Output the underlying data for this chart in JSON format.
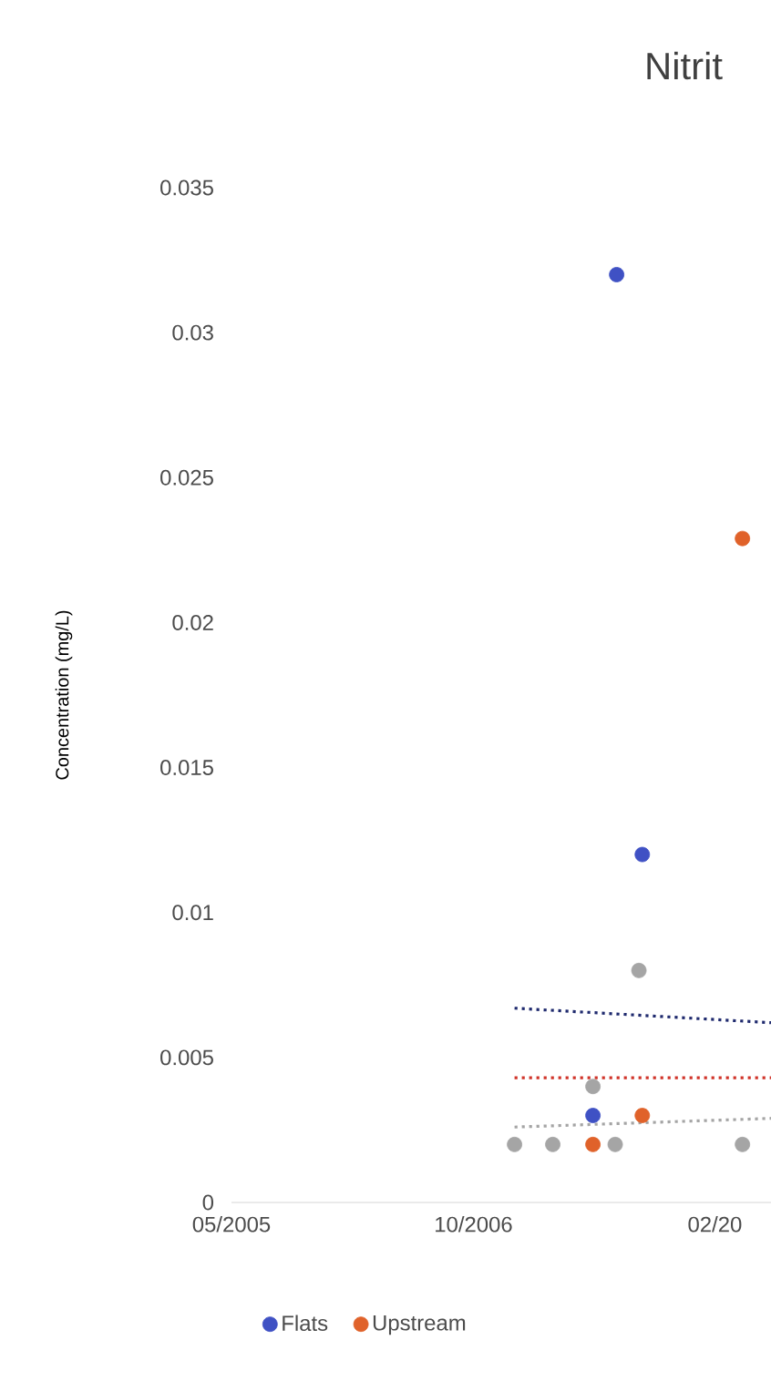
{
  "chart_data": {
    "type": "scatter",
    "title": "Nitrit",
    "ylabel": "Concentration (mg/L)",
    "xlim": [
      "2005-05-29",
      "2008-06-17"
    ],
    "xticks": [
      {
        "value": "2005-05-29",
        "label": "05/2005"
      },
      {
        "value": "2006-10-11",
        "label": "10/2006"
      },
      {
        "value": "2008-02-22",
        "label": "02/20"
      }
    ],
    "ylim": [
      0,
      0.035
    ],
    "yticks": [
      0,
      0.005,
      0.01,
      0.015,
      0.02,
      0.025,
      0.03,
      0.035
    ],
    "grid": false,
    "legend": "bottom",
    "series": [
      {
        "name": "Flats",
        "marker": "circle",
        "color": "#3f51c4",
        "x": [
          "2007-08-03",
          "2007-09-25",
          "2007-06-15"
        ],
        "values": [
          0.032,
          0.012,
          0.003
        ]
      },
      {
        "name": "Upstream",
        "marker": "circle",
        "color": "#e0622a",
        "x": [
          "2007-06-15",
          "2007-09-25",
          "2008-04-19"
        ],
        "values": [
          0.002,
          0.003,
          0.0229
        ]
      },
      {
        "marker": "circle",
        "color": "#a5a5a5",
        "x": [
          "2007-01-04",
          "2007-03-24",
          "2007-06-15",
          "2007-07-31",
          "2007-09-18",
          "2008-04-19"
        ],
        "values": [
          0.002,
          0.002,
          0.004,
          0.002,
          0.008,
          0.002
        ]
      },
      {
        "type": "line",
        "marker": "none",
        "line_style": "dotted",
        "color": "#1f2a6e",
        "x": [
          "2007-01-04",
          "2008-06-17"
        ],
        "values": [
          0.0067,
          0.0062
        ]
      },
      {
        "type": "line",
        "marker": "none",
        "line_style": "dotted",
        "color": "#d0342a",
        "x": [
          "2007-01-04",
          "2008-06-17"
        ],
        "values": [
          0.0043,
          0.0043
        ]
      },
      {
        "type": "line",
        "marker": "none",
        "line_style": "dotted",
        "color": "#a5a5a5",
        "x": [
          "2007-01-04",
          "2008-06-17"
        ],
        "values": [
          0.0026,
          0.0029
        ]
      }
    ]
  }
}
